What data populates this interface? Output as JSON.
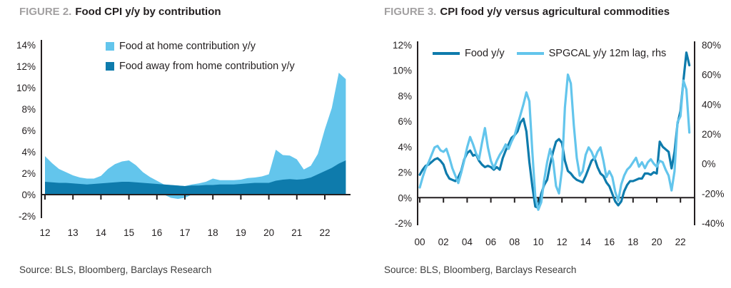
{
  "figure2": {
    "label": "FIGURE 2.",
    "title": "Food CPI y/y by contribution",
    "source": "Source: BLS, Bloomberg, Barclays Research",
    "legend": [
      {
        "label": "Food at home contribution y/y",
        "color": "#63c5ec"
      },
      {
        "label": "Food away from home contribution y/y",
        "color": "#0e7bac"
      }
    ]
  },
  "figure3": {
    "label": "FIGURE 3.",
    "title": "CPI food y/y versus agricultural commodities",
    "source": "Source: BLS, Bloomberg, Barclays Research",
    "legend": [
      {
        "label": "Food y/y",
        "color": "#0e7bac"
      },
      {
        "label": "SPGCAL y/y 12m lag, rhs",
        "color": "#63c5ec"
      }
    ]
  },
  "chart_data": [
    {
      "type": "area",
      "stacked": true,
      "title": "Food CPI y/y by contribution",
      "x_start": 2012,
      "x_step": 0.25,
      "x_tick_years": [
        2012,
        2013,
        2014,
        2015,
        2016,
        2017,
        2018,
        2019,
        2020,
        2021,
        2022
      ],
      "x_tick_labels": [
        "12",
        "13",
        "14",
        "15",
        "16",
        "17",
        "18",
        "19",
        "20",
        "21",
        "22"
      ],
      "ylim": [
        -2,
        14
      ],
      "y_tick_values": [
        14,
        12,
        10,
        8,
        6,
        4,
        2,
        0,
        -2
      ],
      "y_tick_labels": [
        "14%",
        "12%",
        "10%",
        "8%",
        "6%",
        "4%",
        "2%",
        "0%",
        "-2%"
      ],
      "grid": false,
      "legend_position": "top-inside",
      "series": [
        {
          "name": "Food away from home contribution y/y",
          "color": "#0e7bac",
          "values": [
            1.2,
            1.15,
            1.1,
            1.1,
            1.05,
            1.0,
            0.95,
            1.0,
            1.05,
            1.1,
            1.15,
            1.2,
            1.2,
            1.15,
            1.1,
            1.05,
            1.0,
            0.95,
            0.9,
            0.85,
            0.8,
            0.85,
            0.85,
            0.9,
            0.9,
            0.95,
            0.95,
            0.95,
            1.0,
            1.05,
            1.1,
            1.1,
            1.1,
            1.3,
            1.4,
            1.45,
            1.4,
            1.45,
            1.6,
            1.9,
            2.2,
            2.5,
            2.9,
            3.2
          ]
        },
        {
          "name": "Food at home contribution y/y",
          "color": "#63c5ec",
          "values": [
            2.4,
            1.8,
            1.3,
            1.0,
            0.75,
            0.6,
            0.55,
            0.5,
            0.7,
            1.3,
            1.7,
            1.9,
            2.0,
            1.6,
            1.0,
            0.6,
            0.3,
            0.0,
            -0.3,
            -0.4,
            -0.3,
            0.1,
            0.2,
            0.3,
            0.6,
            0.4,
            0.4,
            0.4,
            0.4,
            0.5,
            0.5,
            0.6,
            0.8,
            2.9,
            2.3,
            2.2,
            1.9,
            0.9,
            1.1,
            1.9,
            3.9,
            5.6,
            8.5,
            7.6
          ]
        }
      ]
    },
    {
      "type": "line",
      "title": "CPI food y/y versus agricultural commodities",
      "x_start": 2000,
      "x_step": 0.25,
      "x_tick_years": [
        2000,
        2002,
        2004,
        2006,
        2008,
        2010,
        2012,
        2014,
        2016,
        2018,
        2020,
        2022
      ],
      "x_tick_labels": [
        "00",
        "02",
        "04",
        "06",
        "08",
        "10",
        "12",
        "14",
        "16",
        "18",
        "20",
        "22"
      ],
      "left_ylim": [
        -2,
        12
      ],
      "left_tick_values": [
        12,
        10,
        8,
        6,
        4,
        2,
        0,
        -2
      ],
      "left_tick_labels": [
        "12%",
        "10%",
        "8%",
        "6%",
        "4%",
        "2%",
        "0%",
        "-2%"
      ],
      "right_ylim": [
        -40,
        80
      ],
      "right_tick_values": [
        80,
        60,
        40,
        20,
        0,
        -20,
        -40
      ],
      "right_tick_labels": [
        "80%",
        "60%",
        "40%",
        "20%",
        "0%",
        "-20%",
        "-40%"
      ],
      "grid": false,
      "legend_position": "top-inside",
      "series": [
        {
          "name": "Food y/y",
          "axis": "left",
          "color": "#0e7bac",
          "values": [
            1.8,
            2.2,
            2.5,
            2.6,
            2.8,
            3.0,
            3.1,
            2.9,
            2.6,
            1.9,
            1.5,
            1.4,
            1.3,
            1.6,
            2.1,
            3.0,
            3.5,
            3.7,
            3.3,
            3.4,
            2.9,
            2.6,
            2.4,
            2.5,
            2.4,
            2.2,
            2.4,
            2.2,
            3.1,
            3.7,
            4.2,
            4.7,
            4.9,
            5.2,
            5.9,
            6.2,
            5.2,
            2.8,
            0.9,
            -0.7,
            -0.8,
            0.3,
            1.0,
            1.4,
            2.6,
            3.6,
            4.4,
            4.6,
            4.3,
            2.9,
            2.1,
            1.9,
            1.6,
            1.4,
            1.3,
            1.2,
            1.7,
            2.3,
            2.9,
            3.1,
            2.4,
            1.9,
            1.7,
            1.2,
            0.9,
            0.3,
            -0.3,
            -0.6,
            -0.3,
            0.5,
            1.0,
            1.3,
            1.3,
            1.4,
            1.5,
            1.5,
            1.9,
            1.9,
            1.8,
            2.0,
            1.9,
            4.4,
            4.0,
            3.8,
            3.6,
            2.3,
            3.6,
            5.8,
            6.8,
            9.2,
            11.4,
            10.4
          ]
        },
        {
          "name": "SPGCAL y/y 12m lag, rhs",
          "axis": "right",
          "color": "#63c5ec",
          "values": [
            -16,
            -9,
            -3,
            1,
            6,
            11,
            12,
            9,
            8,
            10,
            4,
            -3,
            -8,
            -13,
            -6,
            2,
            11,
            18,
            13,
            7,
            3,
            14,
            24,
            11,
            2,
            -3,
            2,
            6,
            9,
            13,
            10,
            15,
            19,
            26,
            33,
            40,
            48,
            42,
            8,
            -22,
            -31,
            -26,
            -11,
            1,
            10,
            2,
            -15,
            -20,
            -4,
            38,
            60,
            54,
            26,
            4,
            -8,
            -5,
            6,
            11,
            8,
            3,
            8,
            11,
            2,
            -9,
            -5,
            -9,
            -19,
            -25,
            -14,
            -8,
            -4,
            -2,
            1,
            4,
            -2,
            1,
            -3,
            1,
            3,
            0,
            -2,
            2,
            1,
            -4,
            -8,
            -18,
            -5,
            28,
            32,
            56,
            50,
            21
          ]
        }
      ]
    }
  ]
}
